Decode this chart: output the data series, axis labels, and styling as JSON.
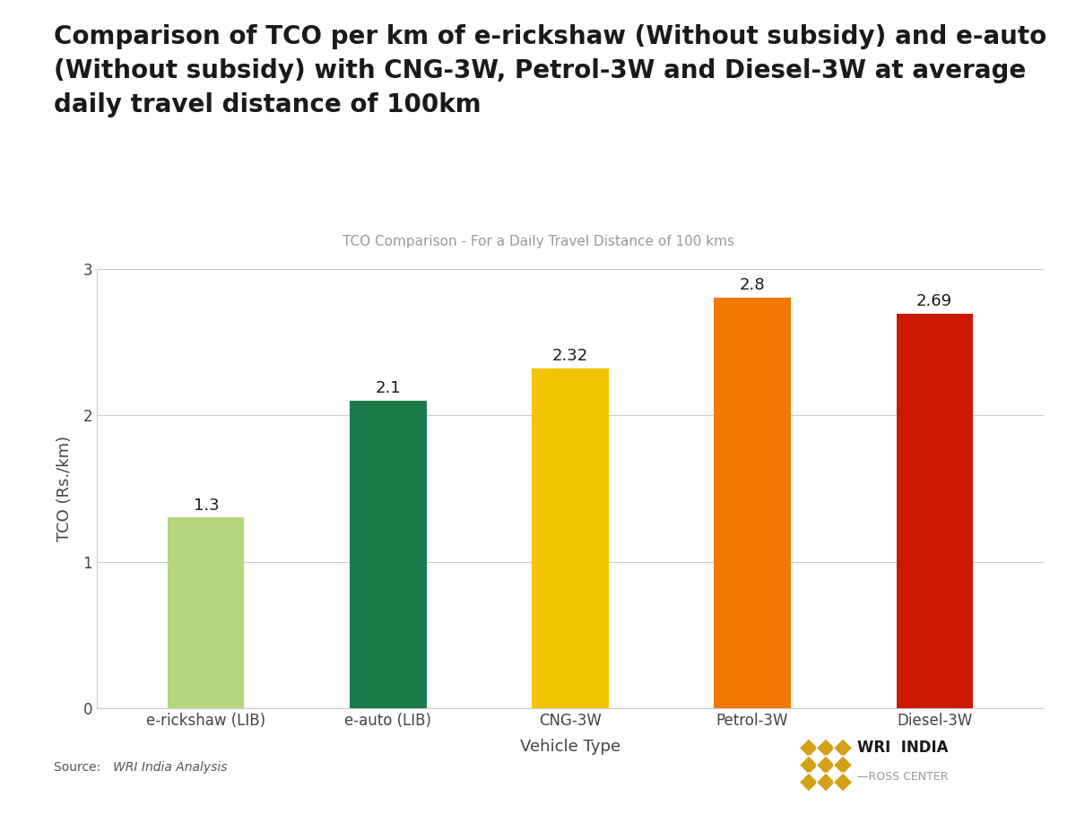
{
  "categories": [
    "e-rickshaw (LIB)",
    "e-auto (LIB)",
    "CNG-3W",
    "Petrol-3W",
    "Diesel-3W"
  ],
  "values": [
    1.3,
    2.1,
    2.32,
    2.8,
    2.69
  ],
  "bar_colors": [
    "#b5d67a",
    "#1a7a4a",
    "#f5c400",
    "#f07800",
    "#cc1800"
  ],
  "value_labels": [
    "1.3",
    "2.1",
    "2.32",
    "2.8",
    "2.69"
  ],
  "main_title_line1": "Comparison of TCO per km of e-rickshaw (Without subsidy) and e-auto",
  "main_title_line2": "(Without subsidy) with CNG-3W, Petrol-3W and Diesel-3W at average",
  "main_title_line3": "daily travel distance of 100km",
  "chart_subtitle": "TCO Comparison - For a Daily Travel Distance of 100 kms",
  "ylabel": "TCO (Rs./km)",
  "xlabel": "Vehicle Type",
  "ylim": [
    0,
    3.0
  ],
  "yticks": [
    0,
    1,
    2,
    3
  ],
  "source_text": "Source: ",
  "source_italic": "WRI India Analysis",
  "bg_color": "#ffffff",
  "axis_color": "#cccccc",
  "grid_color": "#cccccc",
  "subtitle_color": "#999999",
  "value_fontsize": 13,
  "title_fontsize": 20,
  "subtitle_fontsize": 11,
  "tick_fontsize": 12,
  "axis_label_fontsize": 13,
  "gold_color": "#d4a017",
  "bar_width": 0.42
}
